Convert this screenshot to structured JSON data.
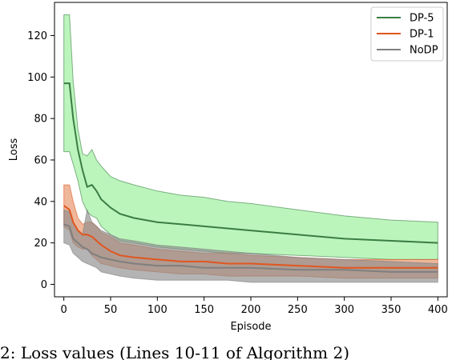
{
  "caption": "2: Loss values (Lines 10-11 of Algorithm 2)",
  "chart_data": {
    "type": "line",
    "xlabel": "Episode",
    "ylabel": "Loss",
    "xlim": [
      -10,
      410
    ],
    "ylim": [
      -6,
      136
    ],
    "xticks": [
      0,
      50,
      100,
      150,
      200,
      250,
      300,
      350,
      400
    ],
    "yticks": [
      0,
      20,
      40,
      60,
      80,
      100,
      120
    ],
    "grid": false,
    "legend_position": "top-right",
    "series": [
      {
        "name": "DP-5",
        "line_color": "#3a7d44",
        "fill_color": "#90ee90",
        "x": [
          0,
          6,
          10,
          15,
          20,
          25,
          30,
          35,
          40,
          50,
          60,
          75,
          100,
          125,
          150,
          175,
          200,
          250,
          300,
          350,
          400
        ],
        "mean": [
          97,
          97,
          80,
          65,
          55,
          47,
          48,
          45,
          41,
          37,
          34,
          32,
          30,
          29,
          28,
          27,
          26,
          24,
          22,
          21,
          20
        ],
        "upper": [
          130,
          130,
          98,
          75,
          63,
          62,
          65,
          60,
          57,
          52,
          50,
          48,
          45,
          43,
          42,
          40,
          39,
          36,
          33,
          31,
          30
        ],
        "lower": [
          64,
          64,
          58,
          50,
          40,
          35,
          33,
          32,
          28,
          24,
          21,
          20,
          18,
          17,
          16,
          15,
          15,
          14,
          13,
          12,
          12
        ]
      },
      {
        "name": "DP-1",
        "line_color": "#e0561f",
        "fill_color": "#e69066",
        "x": [
          0,
          6,
          10,
          15,
          20,
          25,
          30,
          35,
          40,
          50,
          60,
          75,
          100,
          125,
          150,
          175,
          200,
          250,
          300,
          350,
          400
        ],
        "mean": [
          38,
          36,
          30,
          26,
          24,
          24,
          23,
          21,
          19,
          16,
          14,
          13,
          12,
          11,
          11,
          10,
          10,
          9,
          8,
          8,
          8
        ],
        "upper": [
          48,
          48,
          40,
          32,
          29,
          30,
          30,
          28,
          25,
          23,
          20,
          19,
          17,
          16,
          15,
          15,
          14,
          13,
          12,
          12,
          12
        ],
        "lower": [
          28,
          26,
          20,
          18,
          17,
          17,
          14,
          12,
          10,
          9,
          8,
          7,
          6,
          5,
          5,
          4,
          4,
          4,
          3,
          3,
          3
        ]
      },
      {
        "name": "NoDP",
        "line_color": "#7f7f7f",
        "fill_color": "#8c8c8c",
        "x": [
          0,
          6,
          10,
          15,
          20,
          25,
          30,
          35,
          40,
          50,
          60,
          75,
          100,
          125,
          150,
          175,
          200,
          250,
          300,
          350,
          400
        ],
        "mean": [
          29,
          28,
          22,
          20,
          18,
          17,
          15,
          14,
          13,
          12,
          11,
          10,
          9,
          9,
          8,
          8,
          8,
          7,
          7,
          6,
          6
        ],
        "upper": [
          36,
          35,
          30,
          26,
          24,
          36,
          30,
          28,
          26,
          24,
          22,
          21,
          19,
          18,
          17,
          16,
          15,
          13,
          12,
          11,
          10
        ],
        "lower": [
          20,
          19,
          15,
          13,
          11,
          10,
          9,
          8,
          6,
          5,
          4,
          3,
          2,
          2,
          2,
          2,
          1,
          1,
          1,
          1,
          1
        ]
      }
    ]
  }
}
